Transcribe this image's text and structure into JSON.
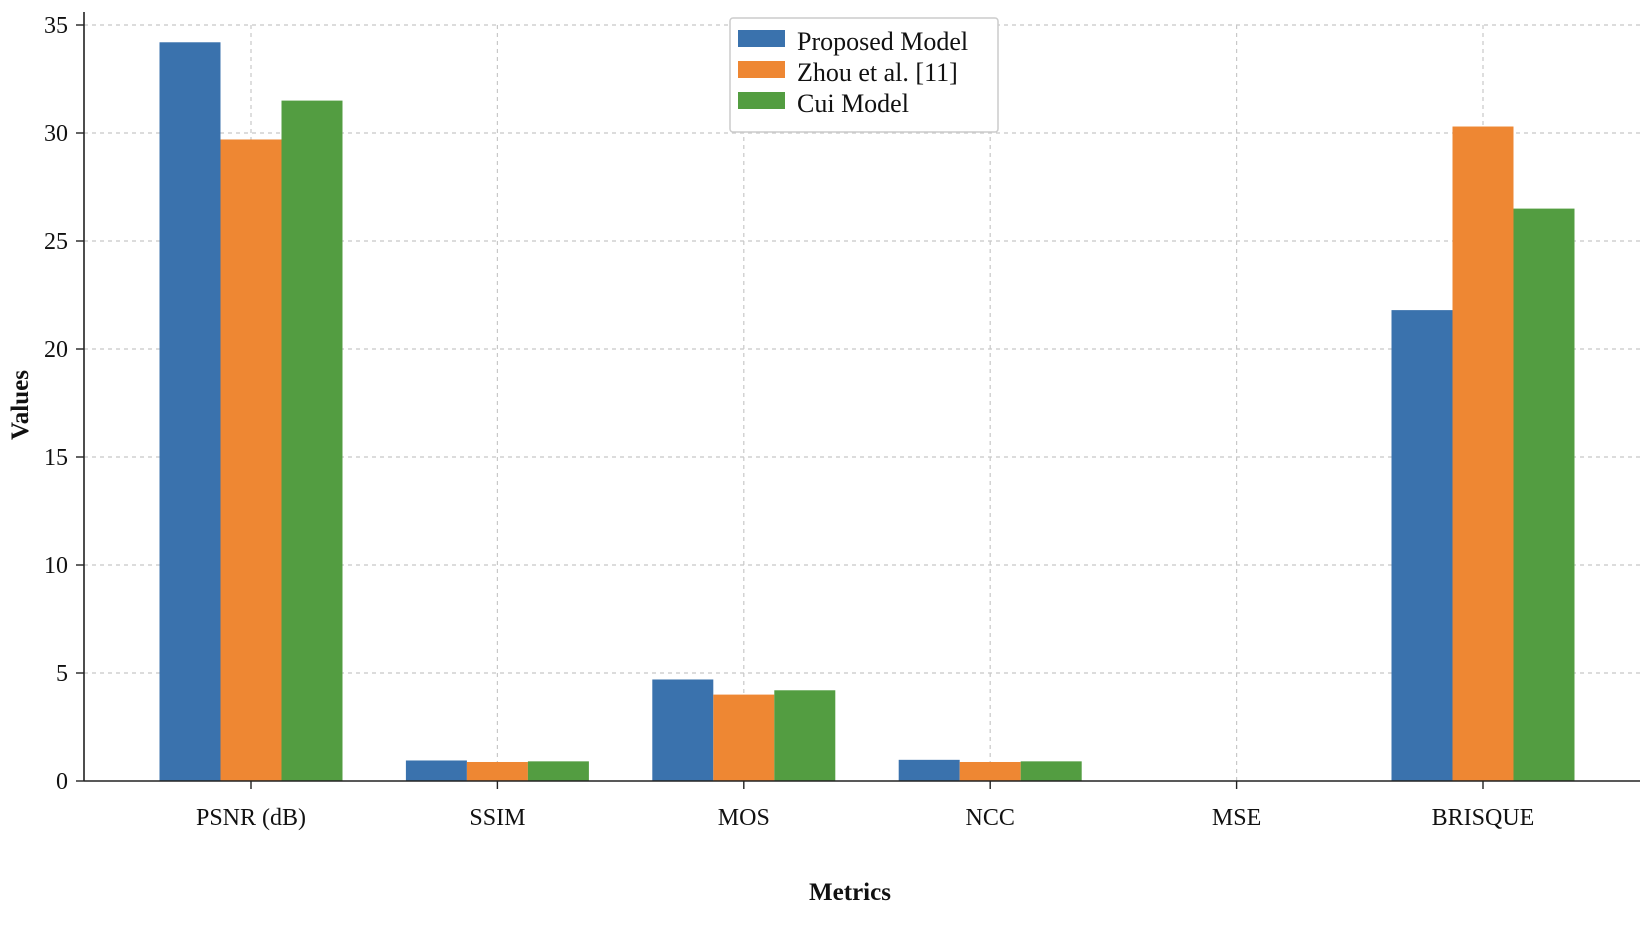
{
  "chart_data": {
    "type": "bar",
    "title": "",
    "xlabel": "Metrics",
    "ylabel": "Values",
    "categories": [
      "PSNR (dB)",
      "SSIM",
      "MOS",
      "NCC",
      "MSE",
      "BRISQUE"
    ],
    "series": [
      {
        "name": "Proposed Model",
        "color": "#3a72ad",
        "values": [
          34.2,
          0.95,
          4.7,
          0.98,
          0.01,
          21.8
        ]
      },
      {
        "name": "Zhou et al. [11]",
        "color": "#ee8733",
        "values": [
          29.7,
          0.88,
          4.0,
          0.88,
          0.01,
          30.3
        ]
      },
      {
        "name": "Cui Model",
        "color": "#539d41",
        "values": [
          31.5,
          0.91,
          4.2,
          0.91,
          0.01,
          26.5
        ]
      }
    ],
    "ylim": [
      0,
      35
    ],
    "yticks": [
      "0",
      "5",
      "10",
      "15",
      "20",
      "25",
      "30",
      "35"
    ],
    "grid": true,
    "legend_position": "top-center"
  }
}
